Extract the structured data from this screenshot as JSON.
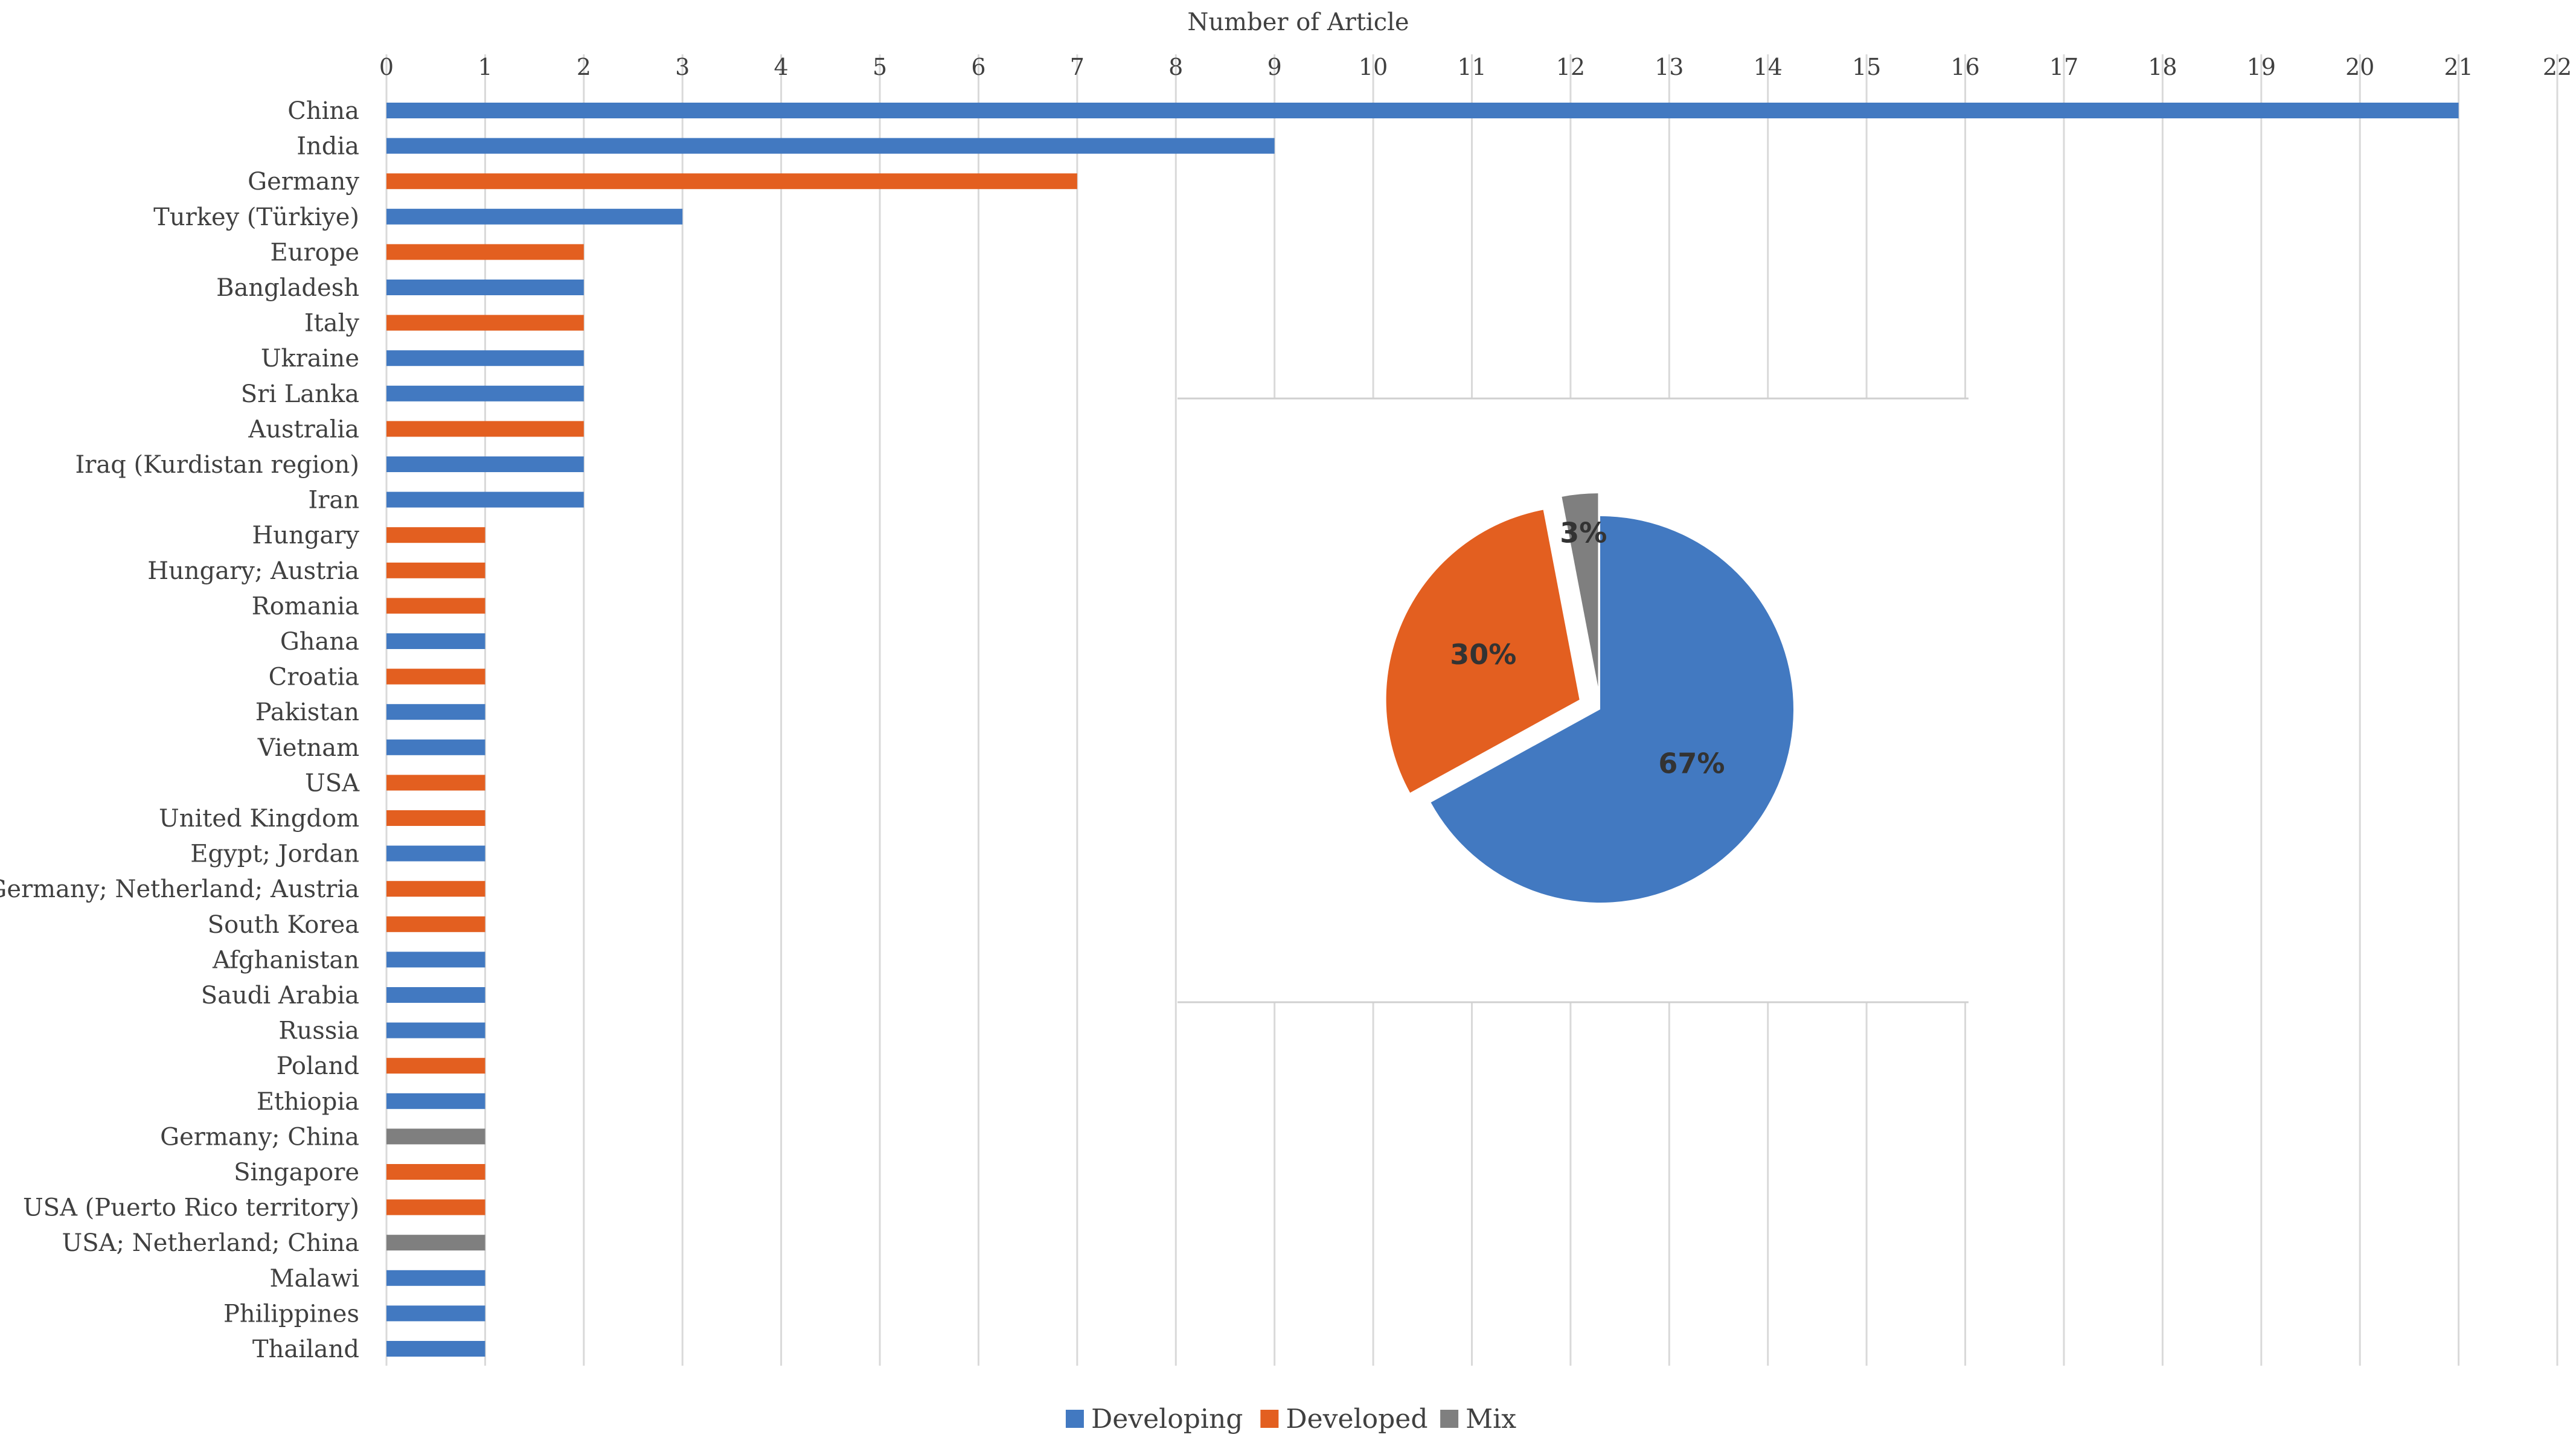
{
  "chart_data": [
    {
      "type": "bar",
      "orientation": "horizontal",
      "xlabel": "Number of Article",
      "xlim": [
        0,
        22
      ],
      "x_ticks": [
        "0",
        "1",
        "2",
        "3",
        "4",
        "5",
        "6",
        "7",
        "8",
        "9",
        "10",
        "11",
        "12",
        "13",
        "14",
        "15",
        "16",
        "17",
        "18",
        "19",
        "20",
        "21",
        "22"
      ],
      "grid": true,
      "categories": [
        "China",
        "India",
        "Germany",
        "Turkey (Türkiye)",
        "Europe",
        "Bangladesh",
        "Italy",
        "Ukraine",
        "Sri Lanka",
        "Australia",
        "Iraq (Kurdistan region)",
        "Iran",
        "Hungary",
        "Hungary; Austria",
        "Romania",
        "Ghana",
        "Croatia",
        "Pakistan",
        "Vietnam",
        "USA",
        "United Kingdom",
        "Egypt; Jordan",
        "Germany; Netherland; Austria",
        "South Korea",
        "Afghanistan",
        "Saudi Arabia",
        "Russia",
        "Poland",
        "Ethiopia",
        "Germany; China",
        "Singapore",
        "USA (Puerto Rico territory)",
        "USA;  Netherland; China",
        "Malawi",
        "Philippines",
        "Thailand"
      ],
      "values": [
        21,
        9,
        7,
        3,
        2,
        2,
        2,
        2,
        2,
        2,
        2,
        2,
        1,
        1,
        1,
        1,
        1,
        1,
        1,
        1,
        1,
        1,
        1,
        1,
        1,
        1,
        1,
        1,
        1,
        1,
        1,
        1,
        1,
        1,
        1,
        1
      ],
      "groups": [
        "Developing",
        "Developing",
        "Developed",
        "Developing",
        "Developed",
        "Developing",
        "Developed",
        "Developing",
        "Developing",
        "Developed",
        "Developing",
        "Developing",
        "Developed",
        "Developed",
        "Developed",
        "Developing",
        "Developed",
        "Developing",
        "Developing",
        "Developed",
        "Developed",
        "Developing",
        "Developed",
        "Developed",
        "Developing",
        "Developing",
        "Developing",
        "Developed",
        "Developing",
        "Mix",
        "Developed",
        "Developed",
        "Mix",
        "Developing",
        "Developing",
        "Developing"
      ],
      "legend": {
        "placement": "bottom",
        "items": [
          {
            "name": "Developing",
            "color": "#4279c1"
          },
          {
            "name": "Developed",
            "color": "#e35f20"
          },
          {
            "name": "Mix",
            "color": "#7f7f7f"
          }
        ]
      }
    },
    {
      "type": "pie",
      "exploded": true,
      "slices": [
        {
          "name": "Developing",
          "value": 67,
          "label": "67%",
          "color": "#4279c1"
        },
        {
          "name": "Developed",
          "value": 30,
          "label": "30%",
          "color": "#e35f20"
        },
        {
          "name": "Mix",
          "value": 3,
          "label": "3%",
          "color": "#7f7f7f"
        }
      ]
    }
  ]
}
